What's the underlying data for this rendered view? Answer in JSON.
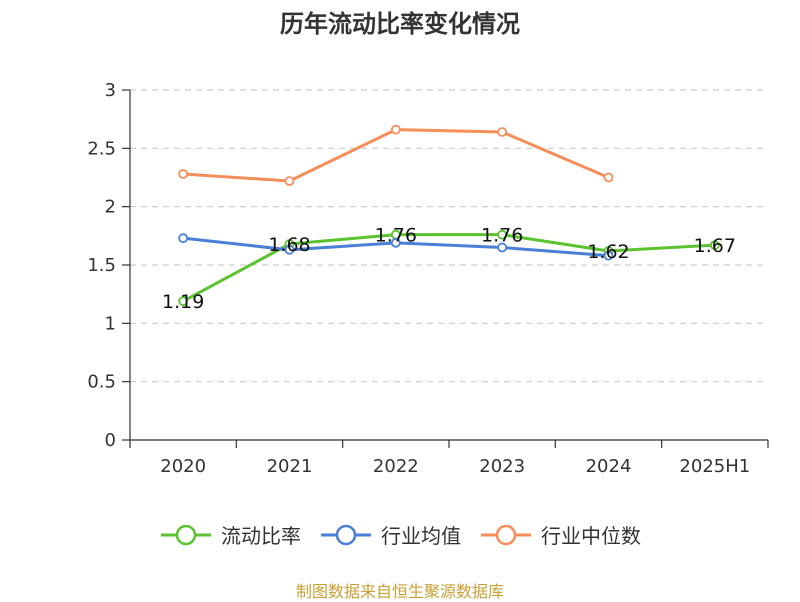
{
  "chart_data": {
    "type": "line",
    "title": "历年流动比率变化情况",
    "categories": [
      "2020",
      "2021",
      "2022",
      "2023",
      "2024",
      "2025H1"
    ],
    "yticks": [
      "0",
      "0.5",
      "1",
      "1.5",
      "2",
      "2.5",
      "3"
    ],
    "ylim": [
      0,
      3
    ],
    "grid": true,
    "legend_position": "bottom",
    "series": [
      {
        "name": "流动比率",
        "color": "#5bc32f",
        "values": [
          1.19,
          1.68,
          1.76,
          1.76,
          1.62,
          1.67
        ],
        "labels": [
          "1.19",
          "1.68",
          "1.76",
          "1.76",
          "1.62",
          "1.67"
        ]
      },
      {
        "name": "行业均值",
        "color": "#4a7fd6",
        "values": [
          1.73,
          1.63,
          1.69,
          1.65,
          1.58,
          null
        ]
      },
      {
        "name": "行业中位数",
        "color": "#f58e5a",
        "values": [
          2.28,
          2.22,
          2.66,
          2.64,
          2.25,
          null
        ]
      }
    ]
  },
  "source_text": "制图数据来自恒生聚源数据库"
}
